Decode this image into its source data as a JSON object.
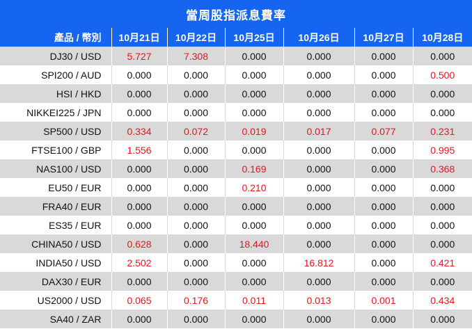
{
  "title": "當周股指派息費率",
  "colors": {
    "header_bg": "#1565f0",
    "row_alt": "#d9d9d9",
    "highlight": "#e8141e"
  },
  "columns": [
    "產品 / 幣別",
    "10月21日",
    "10月22日",
    "10月25日",
    "10月26日",
    "10月27日",
    "10月28日"
  ],
  "rows": [
    {
      "product": "DJ30 / USD",
      "values": [
        "5.727",
        "7.308",
        "0.000",
        "0.000",
        "0.000",
        "0.000"
      ]
    },
    {
      "product": "SPI200 / AUD",
      "values": [
        "0.000",
        "0.000",
        "0.000",
        "0.000",
        "0.000",
        "0.500"
      ]
    },
    {
      "product": "HSI / HKD",
      "values": [
        "0.000",
        "0.000",
        "0.000",
        "0.000",
        "0.000",
        "0.000"
      ]
    },
    {
      "product": "NIKKEI225 / JPN",
      "values": [
        "0.000",
        "0.000",
        "0.000",
        "0.000",
        "0.000",
        "0.000"
      ]
    },
    {
      "product": "SP500 / USD",
      "values": [
        "0.334",
        "0.072",
        "0.019",
        "0.017",
        "0.077",
        "0.231"
      ]
    },
    {
      "product": "FTSE100 / GBP",
      "values": [
        "1.556",
        "0.000",
        "0.000",
        "0.000",
        "0.000",
        "0.995"
      ]
    },
    {
      "product": "NAS100 / USD",
      "values": [
        "0.000",
        "0.000",
        "0.169",
        "0.000",
        "0.000",
        "0.368"
      ]
    },
    {
      "product": "EU50 / EUR",
      "values": [
        "0.000",
        "0.000",
        "0.210",
        "0.000",
        "0.000",
        "0.000"
      ]
    },
    {
      "product": "FRA40 / EUR",
      "values": [
        "0.000",
        "0.000",
        "0.000",
        "0.000",
        "0.000",
        "0.000"
      ]
    },
    {
      "product": "ES35 / EUR",
      "values": [
        "0.000",
        "0.000",
        "0.000",
        "0.000",
        "0.000",
        "0.000"
      ]
    },
    {
      "product": "CHINA50 / USD",
      "values": [
        "0.628",
        "0.000",
        "18.440",
        "0.000",
        "0.000",
        "0.000"
      ]
    },
    {
      "product": "INDIA50 / USD",
      "values": [
        "2.502",
        "0.000",
        "0.000",
        "16.812",
        "0.000",
        "0.421"
      ]
    },
    {
      "product": "DAX30 / EUR",
      "values": [
        "0.000",
        "0.000",
        "0.000",
        "0.000",
        "0.000",
        "0.000"
      ]
    },
    {
      "product": "US2000 / USD",
      "values": [
        "0.065",
        "0.176",
        "0.011",
        "0.013",
        "0.001",
        "0.434"
      ]
    },
    {
      "product": "SA40 / ZAR",
      "values": [
        "0.000",
        "0.000",
        "0.000",
        "0.000",
        "0.000",
        "0.000"
      ]
    }
  ]
}
